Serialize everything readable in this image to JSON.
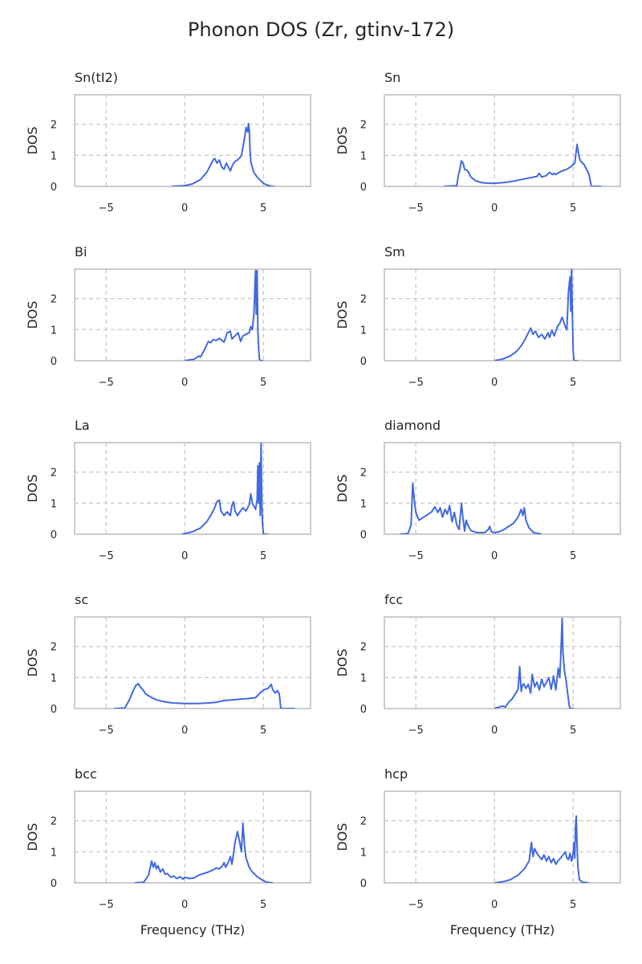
{
  "figure": {
    "title": "Phonon DOS (Zr, gtinv-172)",
    "line_color": "#4169e1",
    "grid_color": "#cccccc"
  },
  "chart_data": [
    {
      "type": "line",
      "title": "Sn(tI2)",
      "xlabel": "",
      "ylabel": "DOS",
      "xlim": [
        -7,
        8
      ],
      "ylim": [
        0,
        2.95
      ],
      "xticks": [
        -5,
        0,
        5
      ],
      "yticks": [
        0,
        1,
        2
      ],
      "grid": true,
      "x": [
        -0.8,
        0,
        0.5,
        1.0,
        1.4,
        1.6,
        1.8,
        1.9,
        2.05,
        2.2,
        2.35,
        2.5,
        2.65,
        2.75,
        2.9,
        3.05,
        3.2,
        3.35,
        3.5,
        3.6,
        3.7,
        3.8,
        3.9,
        4.0,
        4.05,
        4.1,
        4.15,
        4.2,
        4.3,
        4.4,
        4.6,
        4.8,
        5.0,
        5.2,
        5.4,
        5.5,
        5.7
      ],
      "y": [
        0,
        0.02,
        0.08,
        0.22,
        0.45,
        0.65,
        0.85,
        0.9,
        0.75,
        0.85,
        0.62,
        0.55,
        0.75,
        0.65,
        0.5,
        0.7,
        0.8,
        0.85,
        0.92,
        1.0,
        1.25,
        1.55,
        1.9,
        1.75,
        2.02,
        1.85,
        1.2,
        0.8,
        0.6,
        0.45,
        0.3,
        0.2,
        0.1,
        0.05,
        0.02,
        0,
        0
      ]
    },
    {
      "type": "line",
      "title": "Sn",
      "xlabel": "",
      "ylabel": "DOS",
      "xlim": [
        -7,
        8
      ],
      "ylim": [
        0,
        2.95
      ],
      "xticks": [
        -5,
        0,
        5
      ],
      "yticks": [
        0,
        1,
        2
      ],
      "grid": true,
      "x": [
        -3.2,
        -2.4,
        -2.3,
        -2.2,
        -2.1,
        -2.0,
        -1.9,
        -1.7,
        -1.5,
        -1.2,
        -0.8,
        -0.3,
        0,
        0.5,
        1.0,
        1.5,
        2.0,
        2.5,
        2.7,
        2.85,
        3.0,
        3.3,
        3.5,
        3.7,
        3.8,
        3.9,
        4.1,
        4.3,
        4.6,
        4.9,
        5.1,
        5.25,
        5.4,
        5.5,
        5.7,
        6.0,
        6.15,
        6.2,
        6.8
      ],
      "y": [
        0,
        0.02,
        0.35,
        0.55,
        0.82,
        0.75,
        0.55,
        0.5,
        0.3,
        0.18,
        0.12,
        0.1,
        0.1,
        0.12,
        0.15,
        0.2,
        0.25,
        0.3,
        0.32,
        0.42,
        0.3,
        0.35,
        0.45,
        0.38,
        0.42,
        0.38,
        0.45,
        0.5,
        0.55,
        0.65,
        0.75,
        1.35,
        0.9,
        0.8,
        0.7,
        0.4,
        0.02,
        0,
        0
      ]
    },
    {
      "type": "line",
      "title": "Bi",
      "xlabel": "",
      "ylabel": "DOS",
      "xlim": [
        -7,
        8
      ],
      "ylim": [
        0,
        2.95
      ],
      "xticks": [
        -5,
        0,
        5
      ],
      "yticks": [
        0,
        1,
        2
      ],
      "grid": true,
      "x": [
        0,
        0.6,
        0.9,
        1.0,
        1.2,
        1.5,
        1.65,
        1.8,
        2.0,
        2.2,
        2.5,
        2.7,
        2.9,
        3.0,
        3.2,
        3.4,
        3.55,
        3.7,
        3.9,
        4.1,
        4.2,
        4.3,
        4.4,
        4.5,
        4.55,
        4.6,
        4.65,
        4.7,
        4.75,
        4.8,
        5.0
      ],
      "y": [
        0,
        0.05,
        0.15,
        0.12,
        0.3,
        0.62,
        0.58,
        0.68,
        0.65,
        0.72,
        0.6,
        0.9,
        0.95,
        0.7,
        0.8,
        0.9,
        0.62,
        0.8,
        0.85,
        0.9,
        1.1,
        1.0,
        1.5,
        2.9,
        1.5,
        2.9,
        1.0,
        0.4,
        0.05,
        0,
        0
      ]
    },
    {
      "type": "line",
      "title": "Sm",
      "xlabel": "",
      "ylabel": "DOS",
      "xlim": [
        -7,
        8
      ],
      "ylim": [
        0,
        2.95
      ],
      "xticks": [
        -5,
        0,
        5
      ],
      "yticks": [
        0,
        1,
        2
      ],
      "grid": true,
      "x": [
        0,
        0.5,
        1.0,
        1.4,
        1.7,
        1.9,
        2.1,
        2.3,
        2.45,
        2.6,
        2.8,
        3.0,
        3.2,
        3.4,
        3.5,
        3.65,
        3.8,
        4.0,
        4.15,
        4.3,
        4.5,
        4.6,
        4.7,
        4.8,
        4.85,
        4.9,
        4.95,
        5.0,
        5.05,
        5.1,
        5.3
      ],
      "y": [
        0,
        0.05,
        0.15,
        0.3,
        0.48,
        0.65,
        0.85,
        1.05,
        0.85,
        0.95,
        0.75,
        0.85,
        0.7,
        0.9,
        0.75,
        0.98,
        0.8,
        1.1,
        1.2,
        1.4,
        1.1,
        1.0,
        2.2,
        2.7,
        1.6,
        2.95,
        1.5,
        0.3,
        0.02,
        0,
        0
      ]
    },
    {
      "type": "line",
      "title": "La",
      "xlabel": "",
      "ylabel": "DOS",
      "xlim": [
        -7,
        8
      ],
      "ylim": [
        0,
        2.95
      ],
      "xticks": [
        -5,
        0,
        5
      ],
      "yticks": [
        0,
        1,
        2
      ],
      "grid": true,
      "x": [
        -0.2,
        0,
        0.5,
        1.0,
        1.4,
        1.7,
        1.9,
        2.05,
        2.2,
        2.3,
        2.5,
        2.7,
        2.9,
        3.0,
        3.1,
        3.2,
        3.35,
        3.5,
        3.7,
        3.9,
        4.1,
        4.2,
        4.3,
        4.4,
        4.5,
        4.6,
        4.65,
        4.7,
        4.75,
        4.8,
        4.85,
        4.9,
        4.95,
        5.0,
        5.3
      ],
      "y": [
        0,
        0.02,
        0.08,
        0.2,
        0.4,
        0.65,
        0.85,
        1.05,
        1.1,
        0.75,
        0.6,
        0.72,
        0.6,
        0.92,
        1.05,
        0.75,
        0.6,
        0.72,
        0.85,
        0.75,
        0.95,
        1.3,
        1.0,
        0.9,
        0.8,
        1.1,
        2.2,
        1.0,
        2.3,
        0.6,
        2.95,
        1.0,
        0.3,
        0,
        0
      ]
    },
    {
      "type": "line",
      "title": "diamond",
      "xlabel": "",
      "ylabel": "DOS",
      "xlim": [
        -7,
        8
      ],
      "ylim": [
        0,
        2.95
      ],
      "xticks": [
        -5,
        0,
        5
      ],
      "yticks": [
        0,
        1,
        2
      ],
      "grid": true,
      "x": [
        -6.0,
        -5.5,
        -5.3,
        -5.2,
        -5.1,
        -5.0,
        -4.8,
        -4.5,
        -4.2,
        -4.0,
        -3.8,
        -3.6,
        -3.45,
        -3.3,
        -3.15,
        -3.0,
        -2.85,
        -2.7,
        -2.55,
        -2.4,
        -2.25,
        -2.1,
        -2.0,
        -1.9,
        -1.8,
        -1.7,
        -1.5,
        -1.2,
        -0.9,
        -0.6,
        -0.4,
        -0.3,
        -0.2,
        0,
        0.3,
        0.6,
        0.9,
        1.2,
        1.5,
        1.7,
        1.8,
        1.9,
        2.0,
        2.2,
        2.5,
        3.0
      ],
      "y": [
        0,
        0.02,
        0.3,
        1.65,
        1.1,
        0.7,
        0.45,
        0.55,
        0.65,
        0.72,
        0.88,
        0.7,
        0.85,
        0.55,
        0.8,
        0.65,
        0.92,
        0.4,
        0.7,
        0.3,
        0.15,
        1.0,
        0.5,
        0.1,
        0.45,
        0.3,
        0.12,
        0.06,
        0.05,
        0.06,
        0.15,
        0.25,
        0.08,
        0.05,
        0.08,
        0.15,
        0.25,
        0.35,
        0.55,
        0.8,
        0.6,
        0.85,
        0.45,
        0.2,
        0.05,
        0
      ]
    },
    {
      "type": "line",
      "title": "sc",
      "xlabel": "",
      "ylabel": "DOS",
      "xlim": [
        -7,
        8
      ],
      "ylim": [
        0,
        2.95
      ],
      "xticks": [
        -5,
        0,
        5
      ],
      "yticks": [
        0,
        1,
        2
      ],
      "grid": true,
      "x": [
        -4.5,
        -3.8,
        -3.5,
        -3.3,
        -3.1,
        -2.95,
        -2.8,
        -2.65,
        -2.5,
        -2.2,
        -1.8,
        -1.3,
        -0.8,
        0,
        0.8,
        1.5,
        2.0,
        2.5,
        3.0,
        3.5,
        4.0,
        4.5,
        4.7,
        4.9,
        5.0,
        5.3,
        5.5,
        5.6,
        5.75,
        5.9,
        6.0,
        6.05,
        6.1,
        6.2,
        7.0
      ],
      "y": [
        0,
        0.02,
        0.3,
        0.55,
        0.75,
        0.8,
        0.68,
        0.6,
        0.48,
        0.38,
        0.28,
        0.22,
        0.18,
        0.16,
        0.16,
        0.18,
        0.2,
        0.26,
        0.28,
        0.3,
        0.32,
        0.35,
        0.45,
        0.55,
        0.6,
        0.65,
        0.78,
        0.6,
        0.5,
        0.58,
        0.48,
        0.3,
        0.02,
        0,
        0
      ]
    },
    {
      "type": "line",
      "title": "fcc",
      "xlabel": "",
      "ylabel": "DOS",
      "xlim": [
        -7,
        8
      ],
      "ylim": [
        0,
        2.95
      ],
      "xticks": [
        -5,
        0,
        5
      ],
      "yticks": [
        0,
        1,
        2
      ],
      "grid": true,
      "x": [
        0,
        0.5,
        0.7,
        0.9,
        1.1,
        1.3,
        1.5,
        1.6,
        1.7,
        1.75,
        1.85,
        2.0,
        2.15,
        2.3,
        2.4,
        2.55,
        2.7,
        2.85,
        3.0,
        3.15,
        3.3,
        3.45,
        3.6,
        3.75,
        3.9,
        4.05,
        4.15,
        4.2,
        4.3,
        4.35,
        4.45,
        4.55,
        4.65,
        4.75,
        4.8,
        5.0
      ],
      "y": [
        0,
        0.08,
        0.05,
        0.2,
        0.3,
        0.45,
        0.62,
        1.35,
        0.55,
        0.7,
        0.8,
        0.65,
        0.78,
        0.5,
        1.1,
        0.7,
        0.85,
        0.6,
        0.95,
        0.7,
        0.85,
        1.0,
        0.62,
        1.05,
        0.6,
        1.3,
        1.0,
        1.5,
        2.9,
        1.8,
        1.2,
        0.9,
        0.5,
        0.1,
        0,
        0
      ]
    },
    {
      "type": "line",
      "title": "bcc",
      "xlabel": "Frequency (THz)",
      "ylabel": "DOS",
      "xlim": [
        -7,
        8
      ],
      "ylim": [
        0,
        2.95
      ],
      "xticks": [
        -5,
        0,
        5
      ],
      "yticks": [
        0,
        1,
        2
      ],
      "grid": true,
      "x": [
        -3.2,
        -2.6,
        -2.3,
        -2.1,
        -2.0,
        -1.9,
        -1.8,
        -1.7,
        -1.55,
        -1.4,
        -1.25,
        -1.1,
        -0.9,
        -0.7,
        -0.5,
        -0.3,
        -0.1,
        0,
        0.3,
        0.6,
        0.9,
        1.2,
        1.5,
        1.8,
        2.0,
        2.2,
        2.4,
        2.5,
        2.6,
        2.8,
        2.9,
        3.0,
        3.1,
        3.2,
        3.35,
        3.5,
        3.6,
        3.7,
        3.8,
        3.9,
        4.1,
        4.3,
        4.6,
        4.9,
        5.2,
        5.6
      ],
      "y": [
        0,
        0.02,
        0.25,
        0.7,
        0.5,
        0.65,
        0.45,
        0.55,
        0.35,
        0.45,
        0.28,
        0.3,
        0.18,
        0.22,
        0.14,
        0.2,
        0.12,
        0.18,
        0.14,
        0.16,
        0.25,
        0.3,
        0.35,
        0.42,
        0.48,
        0.45,
        0.55,
        0.65,
        0.5,
        0.7,
        0.85,
        0.6,
        0.95,
        1.3,
        1.65,
        1.3,
        1.0,
        1.92,
        1.2,
        0.8,
        0.5,
        0.35,
        0.2,
        0.1,
        0.02,
        0
      ]
    },
    {
      "type": "line",
      "title": "hcp",
      "xlabel": "Frequency (THz)",
      "ylabel": "DOS",
      "xlim": [
        -7,
        8
      ],
      "ylim": [
        0,
        2.95
      ],
      "xticks": [
        -5,
        0,
        5
      ],
      "yticks": [
        0,
        1,
        2
      ],
      "grid": true,
      "x": [
        0,
        0.5,
        1.0,
        1.5,
        1.9,
        2.2,
        2.35,
        2.45,
        2.55,
        2.7,
        2.85,
        3.0,
        3.15,
        3.3,
        3.45,
        3.6,
        3.75,
        3.9,
        4.05,
        4.2,
        4.35,
        4.5,
        4.6,
        4.7,
        4.8,
        4.9,
        5.0,
        5.05,
        5.1,
        5.15,
        5.2,
        5.25,
        5.3,
        5.4,
        5.6,
        6.0
      ],
      "y": [
        0,
        0.03,
        0.1,
        0.25,
        0.45,
        0.7,
        1.3,
        0.85,
        1.1,
        0.95,
        0.85,
        0.75,
        0.9,
        0.7,
        0.85,
        0.65,
        0.78,
        0.6,
        0.72,
        0.8,
        0.9,
        1.0,
        0.8,
        0.75,
        0.95,
        0.7,
        0.95,
        1.3,
        0.8,
        1.8,
        2.15,
        1.2,
        0.5,
        0.1,
        0.02,
        0
      ]
    }
  ]
}
